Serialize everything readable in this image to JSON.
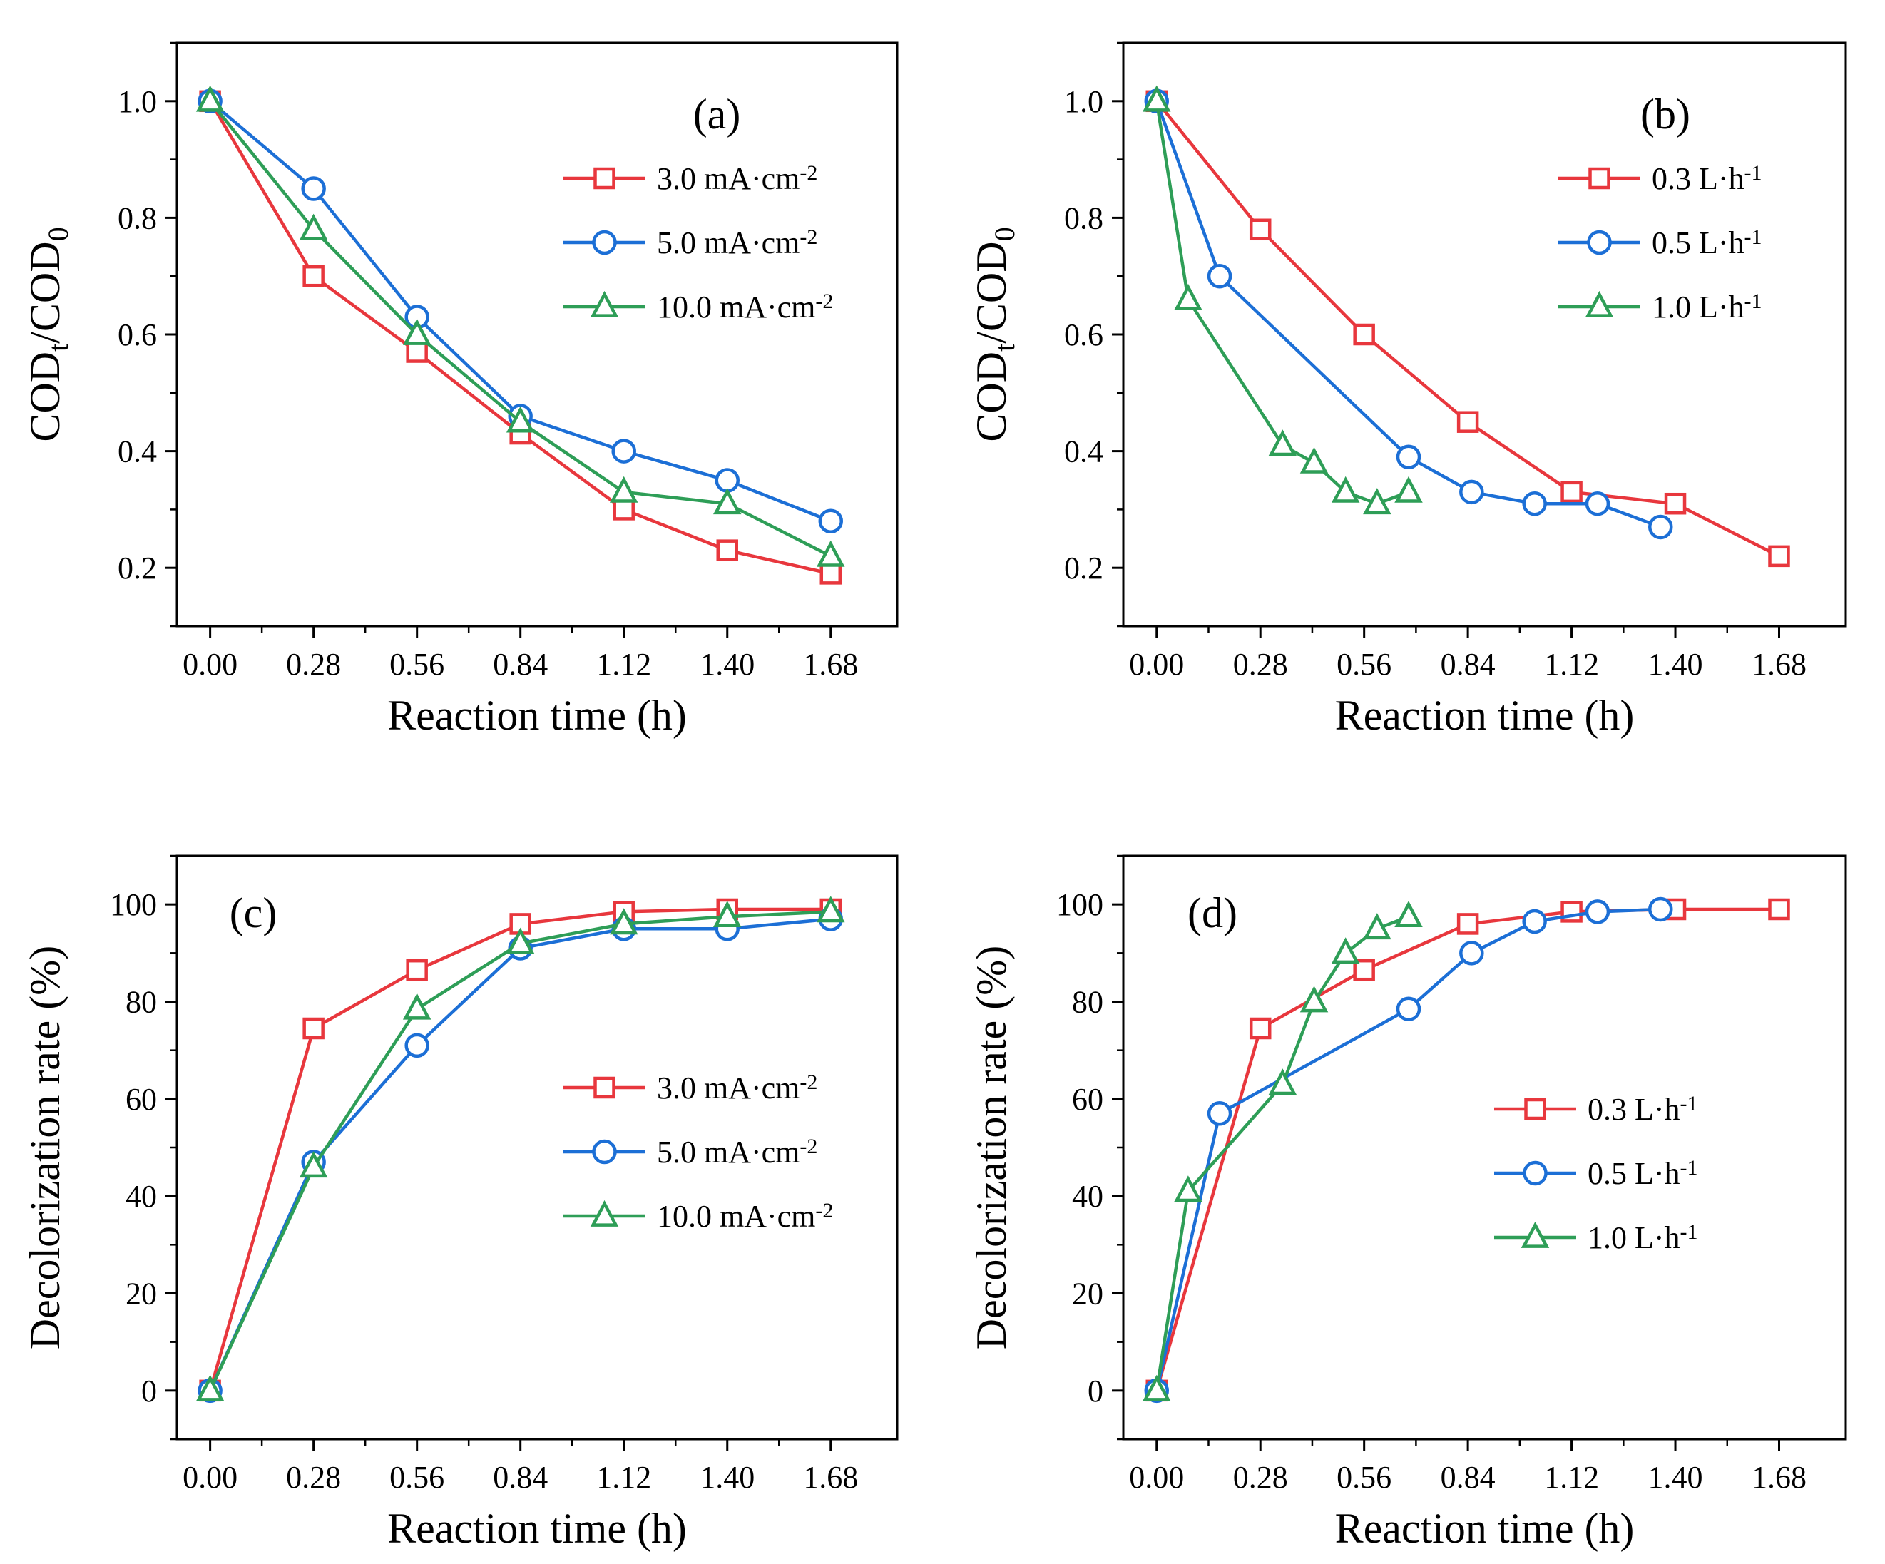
{
  "figure_title": "",
  "chart_data": [
    {
      "type": "line",
      "panel": "(a)",
      "title": "",
      "xlabel": "Reaction time (h)",
      "ylabel": "COD_t/COD_0",
      "ylabel_main": "COD",
      "ylabel_sub1": "t",
      "ylabel_mid": "/COD",
      "ylabel_sub2": "0",
      "xlim": [
        -0.09,
        1.86
      ],
      "ylim": [
        0.1,
        1.1
      ],
      "xticks": [
        0.0,
        0.28,
        0.56,
        0.84,
        1.12,
        1.4,
        1.68
      ],
      "xtick_labels": [
        "0.00",
        "0.28",
        "0.56",
        "0.84",
        "1.12",
        "1.40",
        "1.68"
      ],
      "yticks": [
        0.2,
        0.4,
        0.6,
        0.8,
        1.0
      ],
      "ytick_labels": [
        "0.2",
        "0.4",
        "0.6",
        "0.8",
        "1.0"
      ],
      "minor_yticks": [
        0.1,
        0.3,
        0.5,
        0.7,
        0.9,
        1.1
      ],
      "grid": false,
      "legend_position": "top-right",
      "series": [
        {
          "name": "3.0 mA·cm-2",
          "label_main": "3.0 mA·cm",
          "label_sup": "-2",
          "color": "#e8373d",
          "marker": "square",
          "x": [
            0,
            0.28,
            0.56,
            0.84,
            1.12,
            1.4,
            1.68
          ],
          "y": [
            1.0,
            0.7,
            0.57,
            0.43,
            0.3,
            0.23,
            0.19
          ]
        },
        {
          "name": "5.0 mA·cm-2",
          "label_main": "5.0 mA·cm",
          "label_sup": "-2",
          "color": "#1c6fd6",
          "marker": "circle",
          "x": [
            0,
            0.28,
            0.56,
            0.84,
            1.12,
            1.4,
            1.68
          ],
          "y": [
            1.0,
            0.85,
            0.63,
            0.46,
            0.4,
            0.35,
            0.28
          ]
        },
        {
          "name": "10.0 mA·cm-2",
          "label_main": "10.0 mA·cm",
          "label_sup": "-2",
          "color": "#2e9e57",
          "marker": "triangle",
          "x": [
            0,
            0.28,
            0.56,
            0.84,
            1.12,
            1.4,
            1.68
          ],
          "y": [
            1.0,
            0.78,
            0.6,
            0.45,
            0.33,
            0.31,
            0.22
          ]
        }
      ]
    },
    {
      "type": "line",
      "panel": "(b)",
      "title": "",
      "xlabel": "Reaction time (h)",
      "ylabel": "COD_t/COD_0",
      "ylabel_main": "COD",
      "ylabel_sub1": "t",
      "ylabel_mid": "/COD",
      "ylabel_sub2": "0",
      "xlim": [
        -0.09,
        1.86
      ],
      "ylim": [
        0.1,
        1.1
      ],
      "xticks": [
        0.0,
        0.28,
        0.56,
        0.84,
        1.12,
        1.4,
        1.68
      ],
      "xtick_labels": [
        "0.00",
        "0.28",
        "0.56",
        "0.84",
        "1.12",
        "1.40",
        "1.68"
      ],
      "yticks": [
        0.2,
        0.4,
        0.6,
        0.8,
        1.0
      ],
      "ytick_labels": [
        "0.2",
        "0.4",
        "0.6",
        "0.8",
        "1.0"
      ],
      "minor_yticks": [
        0.1,
        0.3,
        0.5,
        0.7,
        0.9,
        1.1
      ],
      "grid": false,
      "legend_position": "top-right",
      "series": [
        {
          "name": "0.3 L·h-1",
          "label_main": "0.3 L·h",
          "label_sup": "-1",
          "color": "#e8373d",
          "marker": "square",
          "x": [
            0,
            0.28,
            0.56,
            0.84,
            1.12,
            1.4,
            1.68
          ],
          "y": [
            1.0,
            0.78,
            0.6,
            0.45,
            0.33,
            0.31,
            0.22
          ]
        },
        {
          "name": "0.5 L·h-1",
          "label_main": "0.5 L·h",
          "label_sup": "-1",
          "color": "#1c6fd6",
          "marker": "circle",
          "x": [
            0,
            0.17,
            0.68,
            0.85,
            1.02,
            1.19,
            1.36
          ],
          "y": [
            1.0,
            0.7,
            0.39,
            0.33,
            0.31,
            0.31,
            0.27
          ]
        },
        {
          "name": "1.0 L·h-1",
          "label_main": "1.0 L·h",
          "label_sup": "-1",
          "color": "#2e9e57",
          "marker": "triangle",
          "x": [
            0,
            0.085,
            0.34,
            0.425,
            0.51,
            0.595,
            0.68
          ],
          "y": [
            1.0,
            0.66,
            0.41,
            0.38,
            0.33,
            0.31,
            0.33
          ]
        }
      ]
    },
    {
      "type": "line",
      "panel": "(c)",
      "title": "",
      "xlabel": "Reaction time (h)",
      "ylabel": "Decolorization rate (%)",
      "xlim": [
        -0.09,
        1.86
      ],
      "ylim": [
        -10,
        110
      ],
      "xticks": [
        0.0,
        0.28,
        0.56,
        0.84,
        1.12,
        1.4,
        1.68
      ],
      "xtick_labels": [
        "0.00",
        "0.28",
        "0.56",
        "0.84",
        "1.12",
        "1.40",
        "1.68"
      ],
      "yticks": [
        0,
        20,
        40,
        60,
        80,
        100
      ],
      "ytick_labels": [
        "0",
        "20",
        "40",
        "60",
        "80",
        "100"
      ],
      "minor_yticks": [
        -10,
        10,
        30,
        50,
        70,
        90,
        110
      ],
      "grid": false,
      "legend_position": "center-right",
      "series": [
        {
          "name": "3.0 mA·cm-2",
          "label_main": "3.0 mA·cm",
          "label_sup": "-2",
          "color": "#e8373d",
          "marker": "square",
          "x": [
            0,
            0.28,
            0.56,
            0.84,
            1.12,
            1.4,
            1.68
          ],
          "y": [
            0,
            74.5,
            86.5,
            96.0,
            98.5,
            99.0,
            99.0
          ]
        },
        {
          "name": "5.0 mA·cm-2",
          "label_main": "5.0 mA·cm",
          "label_sup": "-2",
          "color": "#1c6fd6",
          "marker": "circle",
          "x": [
            0,
            0.28,
            0.56,
            0.84,
            1.12,
            1.4,
            1.68
          ],
          "y": [
            0,
            47.0,
            71.0,
            91.0,
            95.0,
            95.0,
            97.0
          ]
        },
        {
          "name": "10.0 mA·cm-2",
          "label_main": "10.0 mA·cm",
          "label_sup": "-2",
          "color": "#2e9e57",
          "marker": "triangle",
          "x": [
            0,
            0.28,
            0.56,
            0.84,
            1.12,
            1.4,
            1.68
          ],
          "y": [
            0,
            46.0,
            78.5,
            92.0,
            96.0,
            97.5,
            98.5
          ]
        }
      ]
    },
    {
      "type": "line",
      "panel": "(d)",
      "title": "",
      "xlabel": "Reaction time (h)",
      "ylabel": "Decolorization rate (%)",
      "xlim": [
        -0.09,
        1.86
      ],
      "ylim": [
        -10,
        110
      ],
      "xticks": [
        0.0,
        0.28,
        0.56,
        0.84,
        1.12,
        1.4,
        1.68
      ],
      "xtick_labels": [
        "0.00",
        "0.28",
        "0.56",
        "0.84",
        "1.12",
        "1.40",
        "1.68"
      ],
      "yticks": [
        0,
        20,
        40,
        60,
        80,
        100
      ],
      "ytick_labels": [
        "0",
        "20",
        "40",
        "60",
        "80",
        "100"
      ],
      "minor_yticks": [
        -10,
        10,
        30,
        50,
        70,
        90,
        110
      ],
      "grid": false,
      "legend_position": "center-right",
      "series": [
        {
          "name": "0.3 L·h-1",
          "label_main": "0.3 L·h",
          "label_sup": "-1",
          "color": "#e8373d",
          "marker": "square",
          "x": [
            0,
            0.28,
            0.56,
            0.84,
            1.12,
            1.4,
            1.68
          ],
          "y": [
            0,
            74.5,
            86.5,
            96.0,
            98.5,
            99.0,
            99.0
          ]
        },
        {
          "name": "0.5 L·h-1",
          "label_main": "0.5 L·h",
          "label_sup": "-1",
          "color": "#1c6fd6",
          "marker": "circle",
          "x": [
            0,
            0.17,
            0.68,
            0.85,
            1.02,
            1.19,
            1.36
          ],
          "y": [
            0,
            57.0,
            78.5,
            90.0,
            96.5,
            98.5,
            99.0
          ]
        },
        {
          "name": "1.0 L·h-1",
          "label_main": "1.0 L·h",
          "label_sup": "-1",
          "color": "#2e9e57",
          "marker": "triangle",
          "x": [
            0,
            0.085,
            0.34,
            0.425,
            0.51,
            0.595,
            0.68
          ],
          "y": [
            0,
            41.0,
            63.0,
            80.0,
            90.0,
            95.0,
            97.5
          ]
        }
      ]
    }
  ]
}
